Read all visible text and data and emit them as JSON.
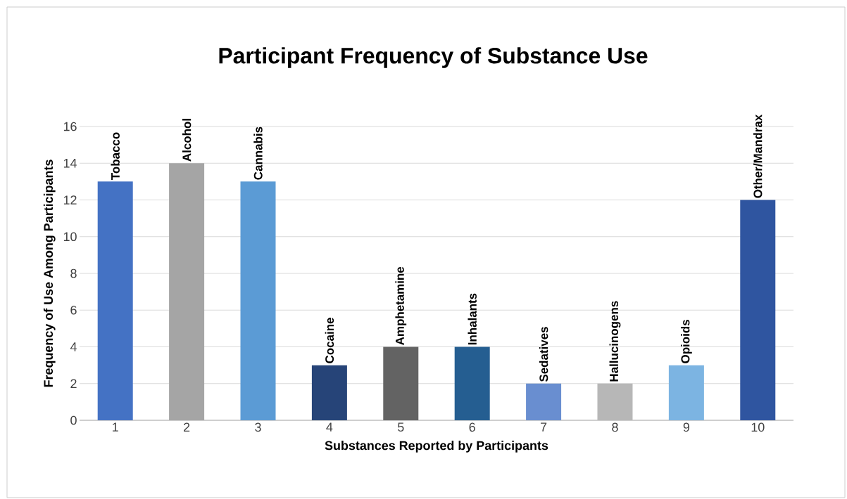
{
  "chart_data": {
    "type": "bar",
    "title": "Participant Frequency of Substance Use",
    "xlabel": "Substances Reported by Participants",
    "ylabel": "Frequency of Use Among Participants",
    "categories": [
      "1",
      "2",
      "3",
      "4",
      "5",
      "6",
      "7",
      "8",
      "9",
      "10"
    ],
    "values": [
      13,
      14,
      13,
      3,
      4,
      4,
      2,
      2,
      3,
      12
    ],
    "colors": [
      "#4472c4",
      "#a5a5a5",
      "#5b9bd5",
      "#264478",
      "#636363",
      "#255e91",
      "#698ed0",
      "#b7b7b7",
      "#7cb4e2",
      "#2f55a0"
    ],
    "ylim": [
      0,
      16
    ],
    "yticks": [
      0,
      2,
      4,
      6,
      8,
      10,
      12,
      14,
      16
    ],
    "grid": "y",
    "annotations": [
      {
        "text": "Tobacco",
        "x": "1",
        "y": 13
      },
      {
        "text": "Alcohol",
        "x": "2",
        "y": 14
      },
      {
        "text": "Cannabis",
        "x": "3",
        "y": 13
      },
      {
        "text": "Cocaine",
        "x": "4",
        "y": 3
      },
      {
        "text": "Amphetamine",
        "x": "5",
        "y": 4
      },
      {
        "text": "Inhalants",
        "x": "6",
        "y": 4
      },
      {
        "text": "Sedatives",
        "x": "7",
        "y": 2
      },
      {
        "text": "Hallucinogens",
        "x": "8",
        "y": 2
      },
      {
        "text": "Opioids",
        "x": "9",
        "y": 3
      },
      {
        "text": "Other/Mandrax",
        "x": "10",
        "y": 12
      }
    ]
  }
}
